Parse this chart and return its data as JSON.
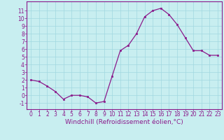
{
  "x": [
    0,
    1,
    2,
    3,
    4,
    5,
    6,
    7,
    8,
    9,
    10,
    11,
    12,
    13,
    14,
    15,
    16,
    17,
    18,
    19,
    20,
    21,
    22,
    23
  ],
  "y": [
    2,
    1.8,
    1.2,
    0.5,
    -0.5,
    0.0,
    0.0,
    -0.2,
    -1.0,
    -0.8,
    2.5,
    5.8,
    6.5,
    8.0,
    10.2,
    11.0,
    11.3,
    10.5,
    9.2,
    7.5,
    5.8,
    5.8,
    5.2,
    5.2
  ],
  "line_color": "#8b1a8b",
  "marker": "s",
  "marker_size": 2.0,
  "bg_color": "#c8eef0",
  "grid_color": "#a0d8e0",
  "xlabel": "Windchill (Refroidissement éolien,°C)",
  "xlabel_fontsize": 6.5,
  "xlim": [
    -0.5,
    23.5
  ],
  "ylim": [
    -1.8,
    12.2
  ],
  "yticks": [
    -1,
    0,
    1,
    2,
    3,
    4,
    5,
    6,
    7,
    8,
    9,
    10,
    11
  ],
  "xticks": [
    0,
    1,
    2,
    3,
    4,
    5,
    6,
    7,
    8,
    9,
    10,
    11,
    12,
    13,
    14,
    15,
    16,
    17,
    18,
    19,
    20,
    21,
    22,
    23
  ],
  "tick_fontsize": 5.5,
  "spine_color": "#8b1a8b"
}
